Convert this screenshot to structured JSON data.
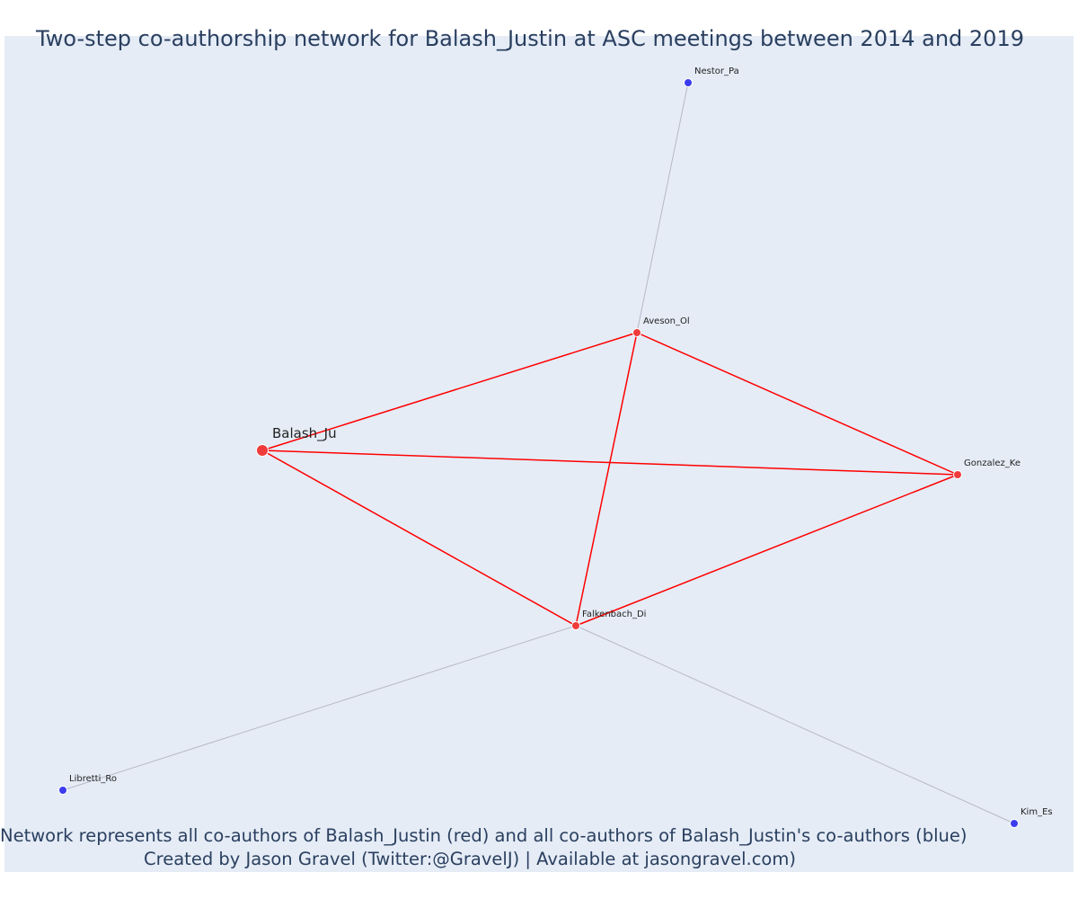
{
  "title": "Two-step co-authorship network for Balash_Justin at ASC meetings between 2014 and 2019",
  "caption": {
    "line1": "Network represents all co-authors of Balash_Justin (red) and all co-authors of Balash_Justin's co-authors (blue)",
    "line2": "Created by Jason Gravel (Twitter:@GravelJ) | Available at jasongravel.com)"
  },
  "colors": {
    "focal": "#ef3b3b",
    "coauthor": "#ef3b3b",
    "second_step": "#3b3bef",
    "coauthor_edge": "#ff0000",
    "second_step_edge": "#b8b8c8",
    "background": "#e5ecf6",
    "text": "#2a3f5f"
  },
  "nodes": [
    {
      "id": "Balash_Ju",
      "label": "Balash_Ju",
      "group": "focal"
    },
    {
      "id": "Aveson_Ol",
      "label": "Aveson_Ol",
      "group": "coauthor"
    },
    {
      "id": "Gonzalez_Ke",
      "label": "Gonzalez_Ke",
      "group": "coauthor"
    },
    {
      "id": "Falkenbach_Di",
      "label": "Falkenbach_Di",
      "group": "coauthor"
    },
    {
      "id": "Nestor_Pa",
      "label": "Nestor_Pa",
      "group": "second_step"
    },
    {
      "id": "Libretti_Ro",
      "label": "Libretti_Ro",
      "group": "second_step"
    },
    {
      "id": "Kim_Es",
      "label": "Kim_Es",
      "group": "second_step"
    }
  ],
  "edges": [
    {
      "source": "Balash_Ju",
      "target": "Aveson_Ol",
      "type": "coauthor"
    },
    {
      "source": "Balash_Ju",
      "target": "Gonzalez_Ke",
      "type": "coauthor"
    },
    {
      "source": "Balash_Ju",
      "target": "Falkenbach_Di",
      "type": "coauthor"
    },
    {
      "source": "Aveson_Ol",
      "target": "Gonzalez_Ke",
      "type": "coauthor"
    },
    {
      "source": "Aveson_Ol",
      "target": "Falkenbach_Di",
      "type": "coauthor"
    },
    {
      "source": "Gonzalez_Ke",
      "target": "Falkenbach_Di",
      "type": "coauthor"
    },
    {
      "source": "Aveson_Ol",
      "target": "Nestor_Pa",
      "type": "second_step"
    },
    {
      "source": "Falkenbach_Di",
      "target": "Libretti_Ro",
      "type": "second_step"
    },
    {
      "source": "Falkenbach_Di",
      "target": "Kim_Es",
      "type": "second_step"
    }
  ]
}
